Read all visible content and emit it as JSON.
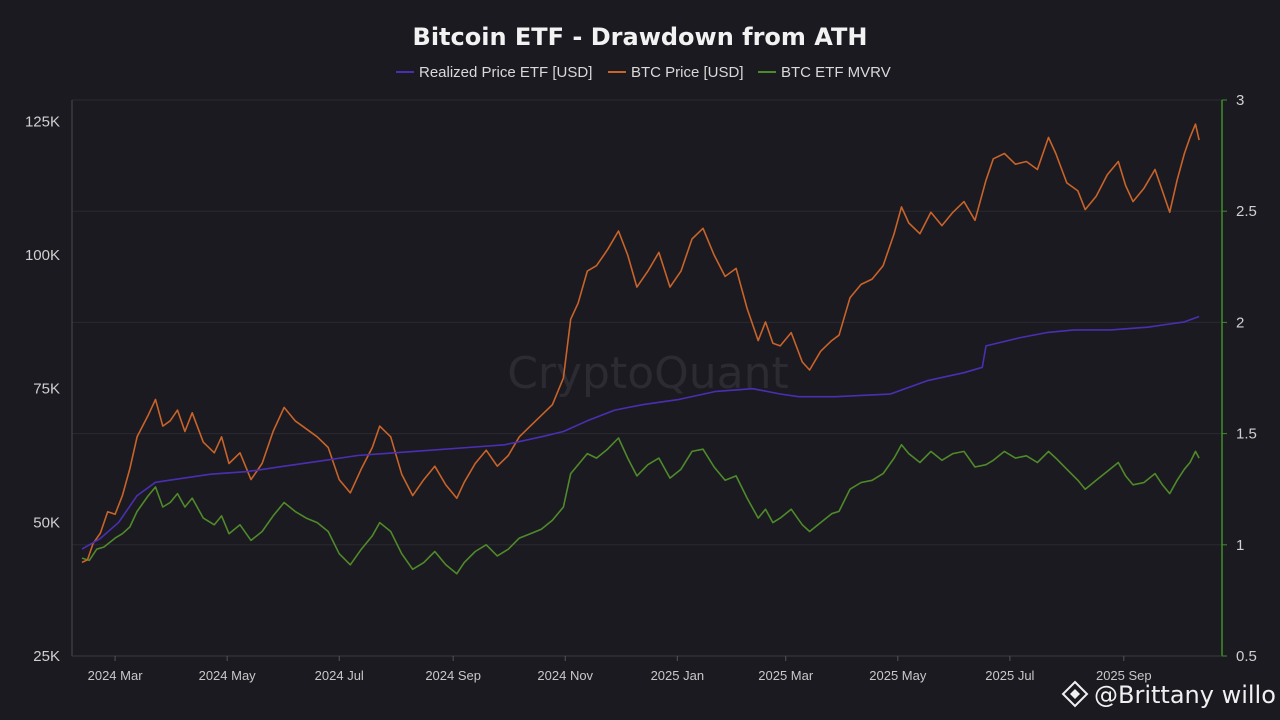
{
  "watermark": "CryptoQuant",
  "credit": "@Brittany willo",
  "colors": {
    "realized": "#4b2fb3",
    "btc": "#c8632a",
    "mvrv": "#4f8a2a",
    "right_axis": "#3e8f2a"
  },
  "chart_data": {
    "type": "line",
    "title": "Bitcoin ETF - Drawdown from ATH",
    "legend": [
      "Realized Price ETF [USD]",
      "BTC Price [USD]",
      "BTC ETF MVRV"
    ],
    "x_tick_labels": [
      "2024 Mar",
      "2024 May",
      "2024 Jul",
      "2024 Sep",
      "2024 Nov",
      "2025 Jan",
      "2025 Mar",
      "2025 May",
      "2025 Jul",
      "2025 Sep"
    ],
    "x_range_days": [
      0,
      615
    ],
    "x_tick_days": [
      18,
      79,
      140,
      202,
      263,
      324,
      383,
      444,
      505,
      567
    ],
    "y_left": {
      "ticks": [
        "25K",
        "50K",
        "75K",
        "100K",
        "125K"
      ],
      "tick_values": [
        25000,
        50000,
        75000,
        100000,
        125000
      ],
      "range": [
        25000,
        129000
      ]
    },
    "y_right": {
      "ticks": [
        "0.5",
        "1",
        "1.5",
        "2",
        "2.5",
        "3"
      ],
      "tick_values": [
        0.5,
        1,
        1.5,
        2,
        2.5,
        3
      ],
      "range": [
        0.5,
        3.0
      ]
    },
    "series": [
      {
        "name": "Realized Price ETF [USD]",
        "axis": "left",
        "points": [
          [
            0,
            45000
          ],
          [
            10,
            47000
          ],
          [
            20,
            50000
          ],
          [
            30,
            55000
          ],
          [
            40,
            57500
          ],
          [
            50,
            58000
          ],
          [
            70,
            59000
          ],
          [
            90,
            59500
          ],
          [
            110,
            60500
          ],
          [
            130,
            61500
          ],
          [
            150,
            62500
          ],
          [
            170,
            63000
          ],
          [
            190,
            63500
          ],
          [
            210,
            64000
          ],
          [
            230,
            64500
          ],
          [
            250,
            66000
          ],
          [
            262,
            67000
          ],
          [
            275,
            69000
          ],
          [
            290,
            71000
          ],
          [
            305,
            72000
          ],
          [
            325,
            73000
          ],
          [
            345,
            74500
          ],
          [
            365,
            75000
          ],
          [
            380,
            74000
          ],
          [
            390,
            73500
          ],
          [
            410,
            73500
          ],
          [
            440,
            74000
          ],
          [
            460,
            76500
          ],
          [
            480,
            78000
          ],
          [
            490,
            79000
          ],
          [
            492,
            83000
          ],
          [
            510,
            84500
          ],
          [
            525,
            85500
          ],
          [
            540,
            86000
          ],
          [
            560,
            86000
          ],
          [
            580,
            86500
          ],
          [
            590,
            87000
          ],
          [
            600,
            87500
          ],
          [
            608,
            88500
          ]
        ]
      },
      {
        "name": "BTC Price [USD]",
        "axis": "left",
        "points": [
          [
            0,
            42500
          ],
          [
            3,
            43000
          ],
          [
            6,
            46000
          ],
          [
            10,
            48000
          ],
          [
            14,
            52000
          ],
          [
            18,
            51500
          ],
          [
            22,
            55000
          ],
          [
            26,
            60000
          ],
          [
            30,
            66000
          ],
          [
            36,
            70000
          ],
          [
            40,
            73000
          ],
          [
            44,
            68000
          ],
          [
            48,
            69000
          ],
          [
            52,
            71000
          ],
          [
            56,
            67000
          ],
          [
            60,
            70500
          ],
          [
            66,
            65000
          ],
          [
            72,
            63000
          ],
          [
            76,
            66000
          ],
          [
            80,
            61000
          ],
          [
            86,
            63000
          ],
          [
            92,
            58000
          ],
          [
            98,
            61000
          ],
          [
            104,
            67000
          ],
          [
            110,
            71500
          ],
          [
            116,
            69000
          ],
          [
            122,
            67500
          ],
          [
            128,
            66000
          ],
          [
            134,
            64000
          ],
          [
            140,
            58000
          ],
          [
            146,
            55500
          ],
          [
            152,
            60000
          ],
          [
            158,
            64000
          ],
          [
            162,
            68000
          ],
          [
            168,
            66000
          ],
          [
            174,
            59000
          ],
          [
            180,
            55000
          ],
          [
            186,
            58000
          ],
          [
            192,
            60500
          ],
          [
            198,
            57000
          ],
          [
            204,
            54500
          ],
          [
            208,
            57500
          ],
          [
            214,
            61000
          ],
          [
            220,
            63500
          ],
          [
            226,
            60500
          ],
          [
            232,
            62500
          ],
          [
            238,
            66000
          ],
          [
            244,
            68000
          ],
          [
            250,
            70000
          ],
          [
            256,
            72000
          ],
          [
            262,
            77000
          ],
          [
            266,
            88000
          ],
          [
            270,
            91000
          ],
          [
            275,
            97000
          ],
          [
            280,
            98000
          ],
          [
            286,
            101000
          ],
          [
            292,
            104500
          ],
          [
            297,
            100000
          ],
          [
            302,
            94000
          ],
          [
            308,
            97000
          ],
          [
            314,
            100500
          ],
          [
            320,
            94000
          ],
          [
            326,
            97000
          ],
          [
            332,
            103000
          ],
          [
            338,
            105000
          ],
          [
            344,
            100000
          ],
          [
            350,
            96000
          ],
          [
            356,
            97500
          ],
          [
            362,
            90000
          ],
          [
            368,
            84000
          ],
          [
            372,
            87500
          ],
          [
            376,
            83500
          ],
          [
            380,
            83000
          ],
          [
            386,
            85500
          ],
          [
            392,
            80000
          ],
          [
            396,
            78500
          ],
          [
            402,
            82000
          ],
          [
            408,
            84000
          ],
          [
            412,
            85000
          ],
          [
            418,
            92000
          ],
          [
            424,
            94500
          ],
          [
            430,
            95500
          ],
          [
            436,
            98000
          ],
          [
            442,
            104000
          ],
          [
            446,
            109000
          ],
          [
            450,
            106000
          ],
          [
            456,
            104000
          ],
          [
            462,
            108000
          ],
          [
            468,
            105500
          ],
          [
            474,
            108000
          ],
          [
            480,
            110000
          ],
          [
            486,
            106500
          ],
          [
            492,
            114000
          ],
          [
            496,
            118000
          ],
          [
            502,
            119000
          ],
          [
            508,
            117000
          ],
          [
            514,
            117500
          ],
          [
            520,
            116000
          ],
          [
            526,
            122000
          ],
          [
            530,
            119000
          ],
          [
            536,
            113500
          ],
          [
            542,
            112000
          ],
          [
            546,
            108500
          ],
          [
            552,
            111000
          ],
          [
            558,
            115000
          ],
          [
            564,
            117500
          ],
          [
            568,
            113000
          ],
          [
            572,
            110000
          ],
          [
            578,
            112500
          ],
          [
            584,
            116000
          ],
          [
            588,
            112000
          ],
          [
            592,
            108000
          ],
          [
            596,
            114000
          ],
          [
            600,
            119000
          ],
          [
            603,
            122000
          ],
          [
            606,
            124500
          ],
          [
            608,
            121500
          ]
        ]
      },
      {
        "name": "BTC ETF MVRV",
        "axis": "right",
        "points": [
          [
            0,
            0.94
          ],
          [
            4,
            0.93
          ],
          [
            8,
            0.98
          ],
          [
            12,
            0.99
          ],
          [
            18,
            1.03
          ],
          [
            22,
            1.05
          ],
          [
            26,
            1.08
          ],
          [
            30,
            1.15
          ],
          [
            36,
            1.22
          ],
          [
            40,
            1.26
          ],
          [
            44,
            1.17
          ],
          [
            48,
            1.19
          ],
          [
            52,
            1.23
          ],
          [
            56,
            1.17
          ],
          [
            60,
            1.21
          ],
          [
            66,
            1.12
          ],
          [
            72,
            1.09
          ],
          [
            76,
            1.13
          ],
          [
            80,
            1.05
          ],
          [
            86,
            1.09
          ],
          [
            92,
            1.02
          ],
          [
            98,
            1.06
          ],
          [
            104,
            1.13
          ],
          [
            110,
            1.19
          ],
          [
            116,
            1.15
          ],
          [
            122,
            1.12
          ],
          [
            128,
            1.1
          ],
          [
            134,
            1.06
          ],
          [
            140,
            0.96
          ],
          [
            146,
            0.91
          ],
          [
            152,
            0.98
          ],
          [
            158,
            1.04
          ],
          [
            162,
            1.1
          ],
          [
            168,
            1.06
          ],
          [
            174,
            0.96
          ],
          [
            180,
            0.89
          ],
          [
            186,
            0.92
          ],
          [
            192,
            0.97
          ],
          [
            198,
            0.91
          ],
          [
            204,
            0.87
          ],
          [
            208,
            0.92
          ],
          [
            214,
            0.97
          ],
          [
            220,
            1.0
          ],
          [
            226,
            0.95
          ],
          [
            232,
            0.98
          ],
          [
            238,
            1.03
          ],
          [
            244,
            1.05
          ],
          [
            250,
            1.07
          ],
          [
            256,
            1.11
          ],
          [
            262,
            1.17
          ],
          [
            266,
            1.32
          ],
          [
            270,
            1.36
          ],
          [
            275,
            1.41
          ],
          [
            280,
            1.39
          ],
          [
            286,
            1.43
          ],
          [
            292,
            1.48
          ],
          [
            297,
            1.39
          ],
          [
            302,
            1.31
          ],
          [
            308,
            1.36
          ],
          [
            314,
            1.39
          ],
          [
            320,
            1.3
          ],
          [
            326,
            1.34
          ],
          [
            332,
            1.42
          ],
          [
            338,
            1.43
          ],
          [
            344,
            1.35
          ],
          [
            350,
            1.29
          ],
          [
            356,
            1.31
          ],
          [
            362,
            1.21
          ],
          [
            368,
            1.12
          ],
          [
            372,
            1.16
          ],
          [
            376,
            1.1
          ],
          [
            380,
            1.12
          ],
          [
            386,
            1.16
          ],
          [
            392,
            1.09
          ],
          [
            396,
            1.06
          ],
          [
            402,
            1.1
          ],
          [
            408,
            1.14
          ],
          [
            412,
            1.15
          ],
          [
            418,
            1.25
          ],
          [
            424,
            1.28
          ],
          [
            430,
            1.29
          ],
          [
            436,
            1.32
          ],
          [
            442,
            1.39
          ],
          [
            446,
            1.45
          ],
          [
            450,
            1.41
          ],
          [
            456,
            1.37
          ],
          [
            462,
            1.42
          ],
          [
            468,
            1.38
          ],
          [
            474,
            1.41
          ],
          [
            480,
            1.42
          ],
          [
            486,
            1.35
          ],
          [
            492,
            1.36
          ],
          [
            496,
            1.38
          ],
          [
            502,
            1.42
          ],
          [
            508,
            1.39
          ],
          [
            514,
            1.4
          ],
          [
            520,
            1.37
          ],
          [
            526,
            1.42
          ],
          [
            530,
            1.39
          ],
          [
            536,
            1.34
          ],
          [
            542,
            1.29
          ],
          [
            546,
            1.25
          ],
          [
            552,
            1.29
          ],
          [
            558,
            1.33
          ],
          [
            564,
            1.37
          ],
          [
            568,
            1.31
          ],
          [
            572,
            1.27
          ],
          [
            578,
            1.28
          ],
          [
            584,
            1.32
          ],
          [
            588,
            1.27
          ],
          [
            592,
            1.23
          ],
          [
            596,
            1.29
          ],
          [
            600,
            1.34
          ],
          [
            603,
            1.37
          ],
          [
            606,
            1.42
          ],
          [
            608,
            1.39
          ]
        ]
      }
    ]
  }
}
